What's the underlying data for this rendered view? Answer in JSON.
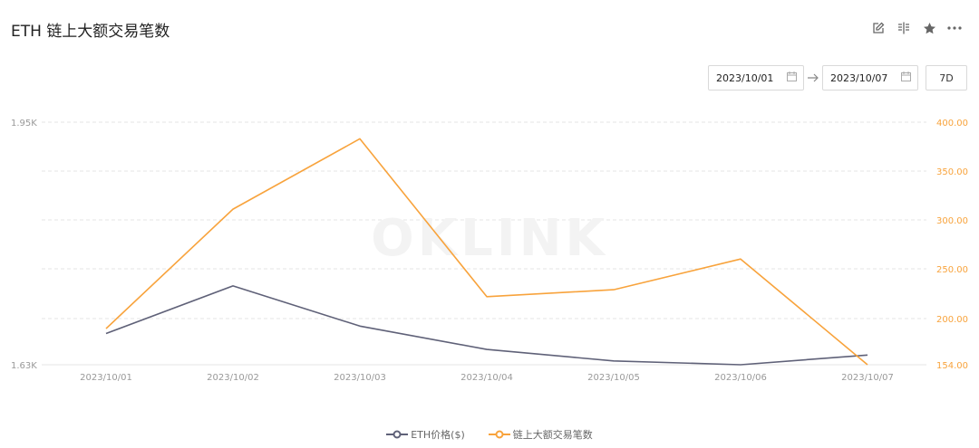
{
  "header": {
    "title": "ETH 链上大额交易笔数",
    "tools": [
      "edit-icon",
      "compare-icon",
      "star-icon",
      "more-icon"
    ]
  },
  "date_range": {
    "start": "2023/10/01",
    "end": "2023/10/07",
    "preset": "7D"
  },
  "watermark": "OKLINK",
  "colors": {
    "eth_price": "#5f6178",
    "large_tx": "#f8a33c",
    "grid": "#e6e6e6",
    "axis_text": "#999999"
  },
  "chart_data": {
    "type": "line",
    "x": [
      "2023/10/01",
      "2023/10/02",
      "2023/10/03",
      "2023/10/04",
      "2023/10/05",
      "2023/10/06",
      "2023/10/07"
    ],
    "series": [
      {
        "name": "ETH价格($)",
        "axis": "left",
        "values": [
          1.6712,
          1.734,
          1.681,
          1.6502,
          1.635,
          1.63,
          1.6428
        ]
      },
      {
        "name": "链上大额交易笔数",
        "axis": "right",
        "values": [
          190,
          311,
          383,
          222,
          229,
          260,
          154
        ]
      }
    ],
    "y_left": {
      "ticks": [
        "1.95K",
        "1.63K"
      ],
      "range": [
        1.63,
        1.95
      ]
    },
    "y_right": {
      "ticks": [
        "400.00",
        "350.00",
        "300.00",
        "250.00",
        "200.00",
        "154.00"
      ],
      "tick_values": [
        400,
        350,
        300,
        250,
        200,
        154
      ]
    },
    "legend": "bottom-center",
    "grid": true
  }
}
